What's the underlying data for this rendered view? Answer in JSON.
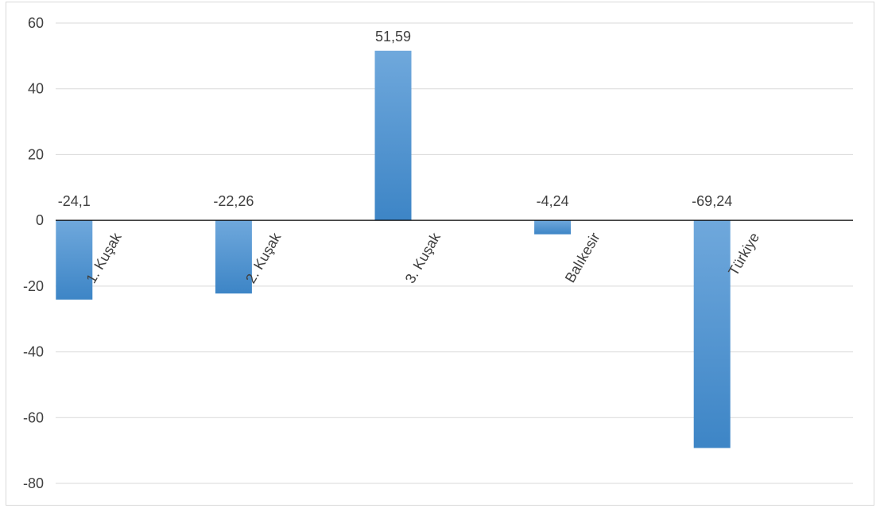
{
  "chart_data": {
    "type": "bar",
    "categories": [
      "1. Kuşak",
      "2. Kuşak",
      "3. Kuşak",
      "Balıkesir",
      "Türkiye"
    ],
    "values": [
      -24.1,
      -22.26,
      51.59,
      -4.24,
      -69.24
    ],
    "data_labels": [
      "-24,1",
      "-22,26",
      "51,59",
      "-4,24",
      "-69,24"
    ],
    "ylim": [
      -80,
      60
    ],
    "yticks": [
      60,
      40,
      20,
      0,
      -20,
      -40,
      -60,
      -80
    ],
    "ytick_labels": [
      "60",
      "40",
      "20",
      "0",
      "-20",
      "-40",
      "-60",
      "-80"
    ],
    "grid": true,
    "colors": {
      "bar_light": "#6fa8dc",
      "bar_dark": "#3d85c6",
      "grid": "#d9d9d9",
      "axis": "#000000",
      "text": "#404040"
    }
  }
}
